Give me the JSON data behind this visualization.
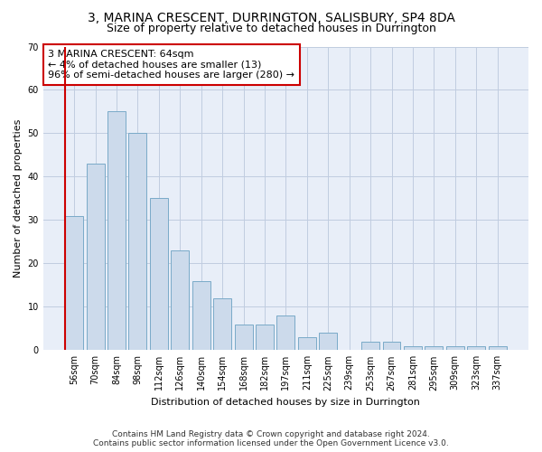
{
  "title": "3, MARINA CRESCENT, DURRINGTON, SALISBURY, SP4 8DA",
  "subtitle": "Size of property relative to detached houses in Durrington",
  "xlabel": "Distribution of detached houses by size in Durrington",
  "ylabel": "Number of detached properties",
  "bar_color": "#ccdaeb",
  "bar_edge_color": "#7aaac8",
  "background_color": "#e8eef8",
  "grid_color": "#c0cce0",
  "categories": [
    "56sqm",
    "70sqm",
    "84sqm",
    "98sqm",
    "112sqm",
    "126sqm",
    "140sqm",
    "154sqm",
    "168sqm",
    "182sqm",
    "197sqm",
    "211sqm",
    "225sqm",
    "239sqm",
    "253sqm",
    "267sqm",
    "281sqm",
    "295sqm",
    "309sqm",
    "323sqm",
    "337sqm"
  ],
  "values": [
    31,
    43,
    55,
    50,
    35,
    23,
    16,
    12,
    6,
    6,
    8,
    3,
    4,
    0,
    2,
    2,
    1,
    1,
    1,
    1,
    1
  ],
  "ylim": [
    0,
    70
  ],
  "yticks": [
    0,
    10,
    20,
    30,
    40,
    50,
    60,
    70
  ],
  "annotation_text": "3 MARINA CRESCENT: 64sqm\n← 4% of detached houses are smaller (13)\n96% of semi-detached houses are larger (280) →",
  "annotation_box_color": "#ffffff",
  "annotation_box_edge_color": "#cc0000",
  "marker_line_color": "#cc0000",
  "footer_line1": "Contains HM Land Registry data © Crown copyright and database right 2024.",
  "footer_line2": "Contains public sector information licensed under the Open Government Licence v3.0.",
  "title_fontsize": 10,
  "subtitle_fontsize": 9,
  "label_fontsize": 8,
  "tick_fontsize": 7,
  "annotation_fontsize": 8,
  "footer_fontsize": 6.5
}
